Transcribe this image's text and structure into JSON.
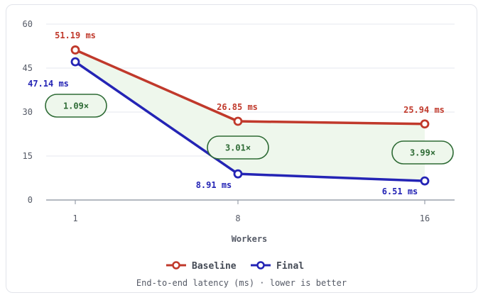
{
  "chart_data": {
    "type": "line",
    "x": [
      1,
      8,
      16
    ],
    "xlabel": "Workers",
    "ylim": [
      0,
      60
    ],
    "yticks": [
      0,
      15,
      30,
      45,
      60
    ],
    "grid": true,
    "legend": "bottom",
    "series": [
      {
        "name": "Baseline",
        "color": "#c0392b",
        "values": [
          51.19,
          26.85,
          25.94
        ],
        "labels": [
          "51.19 ms",
          "26.85 ms",
          "25.94 ms"
        ]
      },
      {
        "name": "Final",
        "color": "#2424b5",
        "values": [
          47.14,
          8.91,
          6.51
        ],
        "labels": [
          "47.14 ms",
          "8.91 ms",
          "6.51 ms"
        ]
      }
    ],
    "speedups": [
      "1.09×",
      "3.01×",
      "3.99×"
    ],
    "fill_color": "#eef7ec",
    "speedup_color": "#2e6b35",
    "caption": "End-to-end latency (ms) · lower is better"
  }
}
